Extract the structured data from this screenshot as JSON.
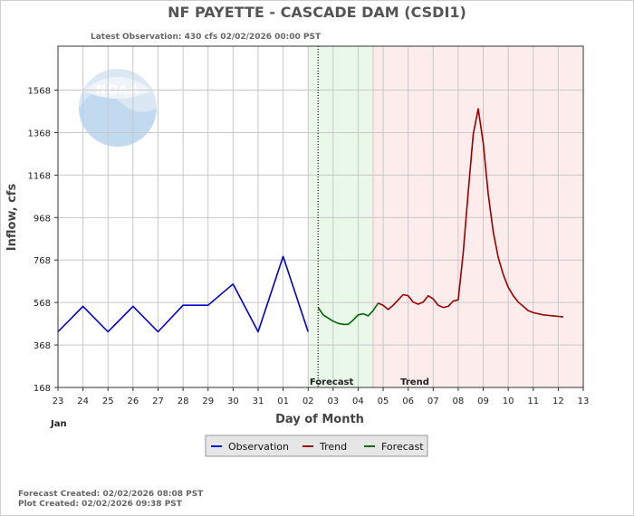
{
  "chart_data": {
    "type": "line",
    "title": "NF PAYETTE - CASCADE DAM  (CSDI1)",
    "subtitle": "Latest Observation: 430 cfs 02/02/2026 00:00 PST",
    "xlabel": "Day of Month",
    "ylabel": "Inflow, cfs",
    "x_ticks": [
      "23",
      "24",
      "25",
      "26",
      "27",
      "28",
      "29",
      "30",
      "31",
      "01",
      "02",
      "03",
      "04",
      "05",
      "06",
      "07",
      "08",
      "09",
      "10",
      "11",
      "12",
      "13"
    ],
    "month_label": "Jan",
    "y_ticks": [
      168,
      368,
      568,
      768,
      968,
      1168,
      1368,
      1568
    ],
    "xlim": [
      0,
      21
    ],
    "ylim": [
      168,
      1775
    ],
    "grid": true,
    "zones": [
      {
        "label": "Forecast",
        "from": 10.0,
        "to": 12.6,
        "color": "#eaf8ea"
      },
      {
        "label": "Trend",
        "from": 12.6,
        "to": 21.0,
        "color": "#fdecec"
      }
    ],
    "now_marker": 10.4,
    "series": [
      {
        "name": "Observation",
        "color": "#0000cc",
        "points": [
          [
            0.0,
            430
          ],
          [
            1.0,
            550
          ],
          [
            2.0,
            430
          ],
          [
            3.0,
            550
          ],
          [
            4.0,
            430
          ],
          [
            5.0,
            555
          ],
          [
            6.0,
            555
          ],
          [
            7.0,
            655
          ],
          [
            8.0,
            430
          ],
          [
            9.0,
            785
          ],
          [
            10.0,
            430
          ]
        ]
      },
      {
        "name": "Forecast",
        "color": "#006600",
        "points": [
          [
            10.4,
            545
          ],
          [
            10.6,
            510
          ],
          [
            10.8,
            495
          ],
          [
            11.0,
            480
          ],
          [
            11.2,
            470
          ],
          [
            11.4,
            465
          ],
          [
            11.6,
            465
          ],
          [
            11.8,
            485
          ],
          [
            12.0,
            510
          ],
          [
            12.2,
            515
          ],
          [
            12.4,
            505
          ],
          [
            12.6,
            530
          ],
          [
            12.8,
            565
          ]
        ]
      },
      {
        "name": "Trend",
        "color": "#990000",
        "points": [
          [
            12.8,
            565
          ],
          [
            13.0,
            555
          ],
          [
            13.2,
            535
          ],
          [
            13.4,
            555
          ],
          [
            13.6,
            580
          ],
          [
            13.8,
            605
          ],
          [
            14.0,
            600
          ],
          [
            14.2,
            570
          ],
          [
            14.4,
            560
          ],
          [
            14.6,
            570
          ],
          [
            14.8,
            600
          ],
          [
            15.0,
            585
          ],
          [
            15.2,
            555
          ],
          [
            15.4,
            545
          ],
          [
            15.6,
            550
          ],
          [
            15.8,
            575
          ],
          [
            16.0,
            580
          ],
          [
            16.2,
            800
          ],
          [
            16.4,
            1090
          ],
          [
            16.6,
            1360
          ],
          [
            16.8,
            1480
          ],
          [
            17.0,
            1320
          ],
          [
            17.2,
            1080
          ],
          [
            17.4,
            900
          ],
          [
            17.6,
            780
          ],
          [
            17.8,
            700
          ],
          [
            18.0,
            640
          ],
          [
            18.2,
            600
          ],
          [
            18.4,
            570
          ],
          [
            18.6,
            550
          ],
          [
            18.8,
            530
          ],
          [
            19.0,
            520
          ],
          [
            19.4,
            510
          ],
          [
            19.8,
            505
          ],
          [
            20.2,
            500
          ]
        ]
      }
    ],
    "legend": [
      "Observation",
      "Trend",
      "Forecast"
    ],
    "legend_position": "bottom-center"
  },
  "footer": {
    "forecast_created": "Forecast Created: 02/02/2026 08:08 PST",
    "plot_created": "Plot Created: 02/02/2026 09:38 PST"
  },
  "logo": {
    "text": "NOAA"
  }
}
